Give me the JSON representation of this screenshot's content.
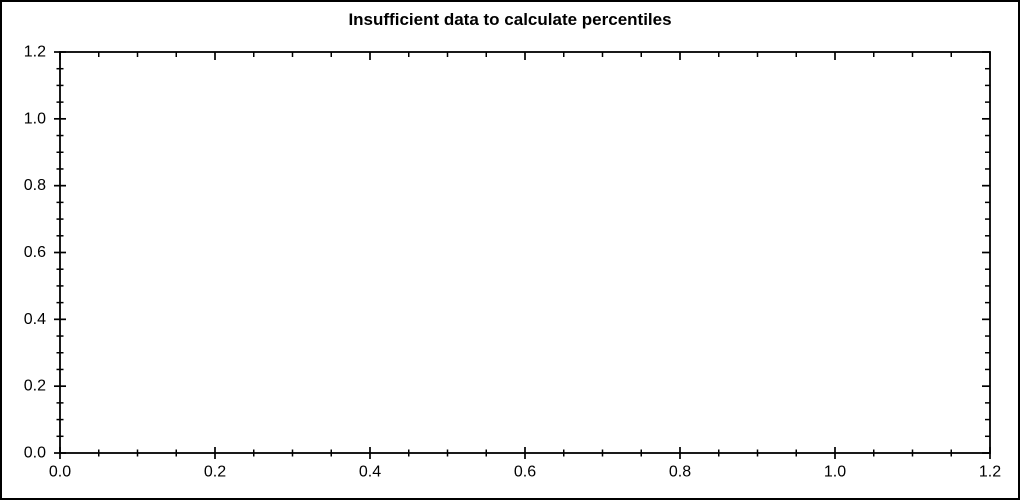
{
  "figure": {
    "background_color": "#ffffff",
    "border_color": "#000000",
    "axis_color": "#000000",
    "text_color": "#000000"
  },
  "chart_data": {
    "type": "scatter",
    "title": "Insufficient data to calculate percentiles",
    "xlabel": "",
    "ylabel": "",
    "xlim": [
      0.0,
      1.2
    ],
    "ylim": [
      0.0,
      1.2
    ],
    "x_ticks": {
      "values": [
        0.0,
        0.2,
        0.4,
        0.6,
        0.8,
        1.0,
        1.2
      ],
      "labels": [
        "0.0",
        "0.2",
        "0.4",
        "0.6",
        "0.8",
        "1.0",
        "1.2"
      ]
    },
    "y_ticks": {
      "values": [
        0.0,
        0.2,
        0.4,
        0.6,
        0.8,
        1.0,
        1.2
      ],
      "labels": [
        "0.0",
        "0.2",
        "0.4",
        "0.6",
        "0.8",
        "1.0",
        "1.2"
      ]
    },
    "minor_tick_step": 0.05,
    "grid": false,
    "legend": null,
    "series": [],
    "points": []
  }
}
